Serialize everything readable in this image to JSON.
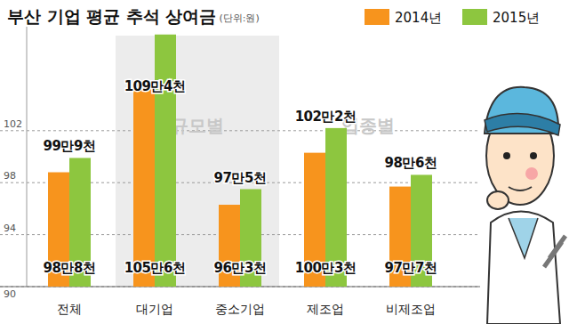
{
  "chart_data": {
    "type": "bar",
    "title": "부산 기업 평균 추석 상여금",
    "subtitle": "(단위:원)",
    "annotations": [
      "규모별",
      "업종별"
    ],
    "categories": [
      "전체",
      "대기업",
      "중소기업",
      "제조업",
      "비제조업"
    ],
    "series": [
      {
        "name": "2014년",
        "color": "#f7941d",
        "values": [
          98.8,
          105.6,
          96.3,
          100.3,
          97.7
        ],
        "value_labels": [
          "98만8천",
          "105만6천",
          "96만3천",
          "100만3천",
          "97만7천"
        ]
      },
      {
        "name": "2015년",
        "color": "#8dc63f",
        "values": [
          99.9,
          109.4,
          97.5,
          102.2,
          98.6
        ],
        "value_labels": [
          "99만9천",
          "109만4천",
          "97만5천",
          "102만2천",
          "98만6천"
        ]
      }
    ],
    "ylim": [
      90,
      110
    ],
    "yticks": [
      90,
      94,
      98,
      102
    ],
    "grid": true,
    "legend": "top-right",
    "data_labels": true
  }
}
